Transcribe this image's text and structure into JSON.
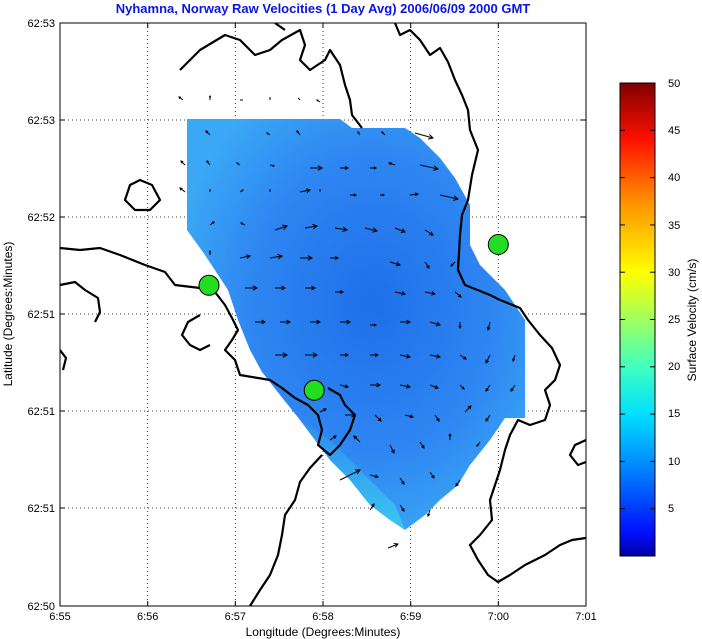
{
  "title": "Nyhamna, Norway Raw Velocities (1 Day Avg) 2006/06/09 2000 GMT",
  "x_axis": {
    "label": "Longitude (Degrees:Minutes)",
    "ticks": [
      "6:55",
      "6:56",
      "6:57",
      "6:58",
      "6:59",
      "7:00",
      "7:01"
    ]
  },
  "y_axis": {
    "label": "Latitude (Degrees:Minutes)",
    "ticks": [
      "62:53",
      "62:53",
      "62:52",
      "62:51",
      "62:51",
      "62:51",
      "62:50"
    ]
  },
  "colorbar": {
    "label": "Surface Velocity (cm/s)",
    "ticks": [
      "50",
      "45",
      "40",
      "35",
      "30",
      "25",
      "20",
      "15",
      "10",
      "5"
    ],
    "range": [
      0,
      50
    ],
    "colormap": "jet"
  },
  "stations": [
    {
      "name": "site-west",
      "lon_min": 56.7,
      "lat_frac": 0.55
    },
    {
      "name": "site-south",
      "lon_min": 57.9,
      "lat_frac": 0.37
    },
    {
      "name": "site-east",
      "lon_min": 60.0,
      "lat_frac": 0.62
    }
  ],
  "colors": {
    "title": "#0a14e6",
    "station_fill": "#22dd22",
    "field_blue": "#2a7ff0",
    "coastline": "#000000"
  }
}
